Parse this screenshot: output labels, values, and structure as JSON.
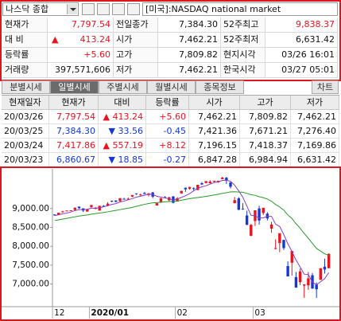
{
  "header": {
    "index_name": "나스닥 종합",
    "market": "[미국]:NASDAQ national market"
  },
  "summary": {
    "rows": [
      [
        {
          "text": "현재가"
        },
        {
          "text": "7,797.54",
          "color": "#e8141e"
        },
        {
          "text": "전일종가"
        },
        {
          "text": "7,384.30"
        },
        {
          "text": "52주최고"
        },
        {
          "text": "9,838.37",
          "color": "#e8141e"
        }
      ],
      [
        {
          "text": "대 비"
        },
        {
          "text": "▲",
          "color": "#e8141e"
        },
        {
          "text": "413.24",
          "color": "#e8141e"
        },
        {
          "text": "시가"
        },
        {
          "text": "7,462.21"
        },
        {
          "text": "52주최저"
        },
        {
          "text": "6,631.42"
        }
      ],
      [
        {
          "text": "등락률"
        },
        {
          "text": "+5.60",
          "color": "#e8141e"
        },
        {
          "text": "고가"
        },
        {
          "text": "7,809.82"
        },
        {
          "text": "현지시각"
        },
        {
          "text": "03/26 16:01"
        }
      ],
      [
        {
          "text": "거래량"
        },
        {
          "text": "397,571,606"
        },
        {
          "text": "저가"
        },
        {
          "text": "7,462.21"
        },
        {
          "text": "한국시각"
        },
        {
          "text": "03/27 05:01"
        }
      ]
    ]
  },
  "tabs": {
    "items": [
      "분별시세",
      "일별시세",
      "주별시세",
      "월별시세",
      "종목정보"
    ],
    "active": 1,
    "chart_button": "차트"
  },
  "daily_table": {
    "columns": [
      "현재일자",
      "현재가",
      "대비",
      "등락률",
      "시가",
      "고가",
      "저가"
    ],
    "rows": [
      {
        "color": "#e8141e",
        "cells": [
          "20/03/26",
          "7,797.54",
          "▲ 413.24",
          "+5.60",
          "7,462.21",
          "7,809.82",
          "7,462.21"
        ]
      },
      {
        "color": "#1537d6",
        "cells": [
          "20/03/25",
          "7,384.30",
          "▼ 33.56",
          "-0.45",
          "7,421.36",
          "7,671.21",
          "7,276.40"
        ]
      },
      {
        "color": "#e8141e",
        "cells": [
          "20/03/24",
          "7,417.86",
          "▲ 557.19",
          "+8.12",
          "7,196.15",
          "7,418.37",
          "7,169.86"
        ]
      },
      {
        "color": "#1537d6",
        "cells": [
          "20/03/23",
          "6,860.67",
          "▼ 18.85",
          "-0.27",
          "6,847.28",
          "6,984.94",
          "6,631.42"
        ]
      }
    ]
  },
  "chart_data": {
    "type": "candlestick",
    "categories": [
      "12",
      null,
      null,
      null,
      null,
      null,
      null,
      null,
      null,
      "2020/01",
      null,
      null,
      null,
      null,
      null,
      null,
      null,
      null,
      null,
      null,
      null,
      null,
      null,
      null,
      null,
      null,
      null,
      null,
      null,
      null,
      "02",
      null,
      null,
      null,
      null,
      null,
      null,
      null,
      null,
      null,
      null,
      null,
      null,
      null,
      null,
      null,
      null,
      null,
      null,
      "03",
      null,
      null,
      null,
      null,
      null,
      null,
      null,
      null,
      null,
      null,
      null,
      null,
      null,
      null,
      null,
      null,
      null,
      null
    ],
    "open": [
      8840,
      8830,
      8920,
      8940,
      8950,
      8960,
      9050,
      9004,
      8920,
      9040,
      8990,
      8945,
      9070,
      9068,
      9205,
      9212,
      9195,
      9257,
      9250,
      9316,
      9400,
      9350,
      9410,
      9360,
      9425,
      9080,
      9160,
      9300,
      9220,
      9320,
      9185,
      9400,
      9550,
      9525,
      9540,
      9490,
      9670,
      9675,
      9670,
      9720,
      9695,
      9780,
      9815,
      9690,
      9140,
      9270,
      8994,
      8815,
      8278,
      8667,
      9001,
      8881,
      8863,
      8467,
      7948,
      8085,
      8168,
      7475,
      7564,
      7183,
      7049,
      6958,
      6966,
      7232,
      6983,
      7111,
      7458,
      7419
    ],
    "high": [
      8850,
      8887,
      8940,
      8950,
      8955,
      9022,
      9052,
      9006,
      8975,
      9093,
      9039,
      9072,
      9092,
      9168,
      9211,
      9215,
      9275,
      9282,
      9290,
      9357,
      9400,
      9392,
      9440,
      9404,
      9438,
      9165,
      9280,
      9330,
      9305,
      9330,
      9300,
      9470,
      9552,
      9572,
      9560,
      9629,
      9700,
      9726,
      9750,
      9735,
      9735,
      9838,
      9838,
      9695,
      9305,
      9300,
      9144,
      8941,
      8590,
      8953,
      9071,
      9018,
      8903,
      8648,
      8183,
      8344,
      8169,
      7600,
      7875,
      7319,
      7412,
      6993,
      7320,
      7293,
      7043,
      7418,
      7671,
      7810
    ],
    "low": [
      8815,
      8825,
      8890,
      8925,
      8935,
      8958,
      8990,
      8910,
      8915,
      9010,
      8980,
      8943,
      9042,
      9060,
      9165,
      9160,
      9185,
      9240,
      9230,
      9300,
      9362,
      9340,
      9380,
      9320,
      9275,
      9080,
      9150,
      9270,
      9180,
      9135,
      9180,
      9390,
      9440,
      9500,
      9480,
      9485,
      9620,
      9665,
      9660,
      9685,
      9680,
      9775,
      9650,
      9530,
      9140,
      8957,
      8970,
      8565,
      8264,
      8538,
      8575,
      8830,
      8684,
      8355,
      7920,
      7844,
      7902,
      7201,
      7224,
      6904,
      6970,
      6633,
      6845,
      6872,
      6632,
      7111,
      7276,
      7419
    ],
    "close": [
      8827,
      8887,
      8925,
      8945,
      8952,
      9022,
      9007,
      8945,
      8973,
      9093,
      9021,
      9071,
      9069,
      9129,
      9203,
      9179,
      9274,
      9251,
      9259,
      9357,
      9389,
      9370,
      9383,
      9402,
      9315,
      9139,
      9269,
      9275,
      9298,
      9151,
      9273,
      9467,
      9508,
      9572,
      9520,
      9629,
      9638,
      9725,
      9712,
      9731,
      9732,
      9817,
      9750,
      9577,
      9221,
      8966,
      8980,
      8566,
      8567,
      8952,
      8684,
      9018,
      8738,
      8575,
      7950,
      8344,
      7952,
      7201,
      7875,
      6904,
      7335,
      6989,
      7150,
      6880,
      6861,
      7418,
      7384,
      7798
    ],
    "up_color": "#e8141e",
    "down_color": "#1537d6",
    "lines": [
      {
        "color": "#8a3cc4",
        "values": [
          8810,
          8835,
          8860,
          8880,
          8907,
          8946,
          8970,
          8974,
          8980,
          9008,
          9008,
          9021,
          9045,
          9077,
          9109,
          9130,
          9171,
          9197,
          9233,
          9260,
          9302,
          9325,
          9352,
          9380,
          9372,
          9324,
          9302,
          9280,
          9260,
          9226,
          9253,
          9293,
          9339,
          9394,
          9468,
          9539,
          9573,
          9603,
          9645,
          9687,
          9708,
          9743,
          9748,
          9721,
          9619,
          9466,
          9299,
          9062,
          8820,
          8806,
          8750,
          8753,
          8792,
          8793,
          8585,
          8525,
          8312,
          8064,
          7864,
          7635,
          7453,
          7261,
          7251,
          7052,
          6977,
          7060,
          7140,
          7302
        ]
      },
      {
        "color": "#2a9a2a",
        "values": [
          8680,
          8700,
          8720,
          8740,
          8760,
          8780,
          8800,
          8815,
          8830,
          8850,
          8865,
          8880,
          8895,
          8912,
          8932,
          8950,
          8970,
          8990,
          9008,
          9030,
          9058,
          9085,
          9110,
          9133,
          9150,
          9156,
          9166,
          9176,
          9185,
          9188,
          9199,
          9219,
          9240,
          9262,
          9278,
          9291,
          9304,
          9323,
          9339,
          9358,
          9377,
          9401,
          9418,
          9440,
          9444,
          9436,
          9430,
          9400,
          9365,
          9350,
          9311,
          9288,
          9249,
          9192,
          9107,
          9042,
          8956,
          8830,
          8738,
          8597,
          8477,
          8340,
          8212,
          8077,
          7944,
          7870,
          7800,
          7760
        ]
      }
    ],
    "ylim": [
      6400,
      10050
    ],
    "yticks": [
      {
        "value": 9000,
        "label": "9,000.00"
      },
      {
        "value": 8500,
        "label": "8,500.00"
      },
      {
        "value": 8000,
        "label": "8,000.00"
      },
      {
        "value": 7500,
        "label": "7,500.00"
      },
      {
        "value": 7000,
        "label": "7,000.00"
      }
    ]
  }
}
